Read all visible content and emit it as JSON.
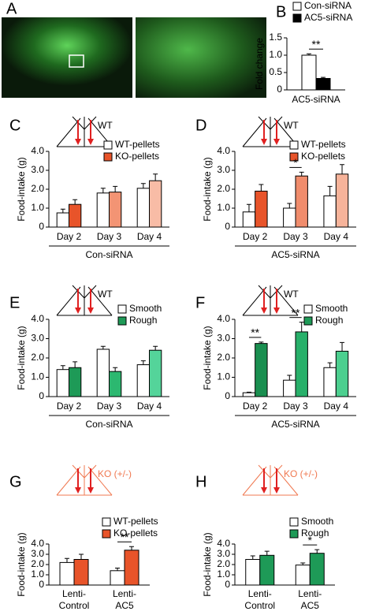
{
  "image_panel": {
    "label": "A"
  },
  "chart_data": [
    {
      "type": "bar",
      "panel": "B",
      "ylabel": "Fold change",
      "categories": [
        "AC5-siRNA"
      ],
      "ylim": [
        0,
        1.5
      ],
      "yticks": [
        0,
        0.5,
        {
          "value": 1,
          "label": "1.0"
        },
        1.5
      ],
      "series": [
        {
          "name": "Con-siRNA",
          "color": "#ffffff",
          "values": [
            1.0
          ],
          "errors": [
            0.04
          ]
        },
        {
          "name": "AC5-siRNA",
          "color": "#000000",
          "values": [
            0.33
          ],
          "errors": [
            0.03
          ]
        }
      ],
      "significance": [
        "**"
      ]
    },
    {
      "type": "bar",
      "panel": "C",
      "schematic_label": "WT",
      "schematic_color": "#000000",
      "ylabel": "Food-intake (g)",
      "xlabel": "Con-siRNA",
      "categories": [
        "Day 2",
        "Day 3",
        "Day 4"
      ],
      "ylim": [
        0,
        4
      ],
      "yticks": [
        0,
        {
          "value": 1,
          "label": "1.0"
        },
        {
          "value": 2,
          "label": "2.0"
        },
        {
          "value": 3,
          "label": "3.0"
        },
        {
          "value": 4,
          "label": "4.0"
        }
      ],
      "series": [
        {
          "name": "WT-pellets",
          "color": "#ffffff",
          "values": [
            0.75,
            1.8,
            2.05
          ],
          "errors": [
            0.2,
            0.25,
            0.25
          ]
        },
        {
          "name": "KO-pellets",
          "color": "#e8542a",
          "colors": [
            "#e8542a",
            "#f39474",
            "#f8bca6"
          ],
          "values": [
            1.2,
            1.85,
            2.45
          ],
          "errors": [
            0.25,
            0.3,
            0.35
          ]
        }
      ],
      "significance": [
        null,
        null,
        null
      ]
    },
    {
      "type": "bar",
      "panel": "D",
      "schematic_label": "WT",
      "schematic_color": "#000000",
      "ylabel": "Food-intake (g)",
      "xlabel": "AC5-siRNA",
      "categories": [
        "Day 2",
        "Day 3",
        "Day 4"
      ],
      "ylim": [
        0,
        4
      ],
      "yticks": [
        0,
        {
          "value": 1,
          "label": "1.0"
        },
        {
          "value": 2,
          "label": "2.0"
        },
        {
          "value": 3,
          "label": "3.0"
        },
        {
          "value": 4,
          "label": "4.0"
        }
      ],
      "series": [
        {
          "name": "WT-pellets",
          "color": "#ffffff",
          "values": [
            0.8,
            1.0,
            1.65
          ],
          "errors": [
            0.4,
            0.25,
            0.5
          ]
        },
        {
          "name": "KO-pellets",
          "color": "#e8542a",
          "colors": [
            "#e8542a",
            "#f08c6c",
            "#f6b39a"
          ],
          "values": [
            1.9,
            2.7,
            2.8
          ],
          "errors": [
            0.35,
            0.2,
            0.5
          ]
        }
      ],
      "significance": [
        null,
        "*",
        null
      ]
    },
    {
      "type": "bar",
      "panel": "E",
      "schematic_label": "WT",
      "schematic_color": "#000000",
      "ylabel": "Food-intake (g)",
      "xlabel": "Con-siRNA",
      "categories": [
        "Day 2",
        "Day 3",
        "Day 4"
      ],
      "ylim": [
        0,
        4
      ],
      "yticks": [
        0,
        {
          "value": 1,
          "label": "1.0"
        },
        {
          "value": 2,
          "label": "2.0"
        },
        {
          "value": 3,
          "label": "3.0"
        },
        {
          "value": 4,
          "label": "4.0"
        }
      ],
      "series": [
        {
          "name": "Smooth",
          "color": "#ffffff",
          "values": [
            1.4,
            2.45,
            1.65
          ],
          "errors": [
            0.2,
            0.15,
            0.2
          ]
        },
        {
          "name": "Rough",
          "color": "#1e9a57",
          "colors": [
            "#1e9a57",
            "#2cb870",
            "#54d49a"
          ],
          "values": [
            1.5,
            1.3,
            2.4
          ],
          "errors": [
            0.3,
            0.2,
            0.2
          ]
        }
      ],
      "significance": [
        null,
        null,
        null
      ]
    },
    {
      "type": "bar",
      "panel": "F",
      "schematic_label": "WT",
      "schematic_color": "#000000",
      "ylabel": "Food-intake (g)",
      "xlabel": "AC5-siRNA",
      "categories": [
        "Day 2",
        "Day 3",
        "Day 4"
      ],
      "ylim": [
        0,
        4
      ],
      "yticks": [
        0,
        {
          "value": 1,
          "label": "1.0"
        },
        {
          "value": 2,
          "label": "2.0"
        },
        {
          "value": 3,
          "label": "3.0"
        },
        {
          "value": 4,
          "label": "4.0"
        }
      ],
      "series": [
        {
          "name": "Smooth",
          "color": "#ffffff",
          "values": [
            0.2,
            0.85,
            1.5
          ],
          "errors": [
            0.03,
            0.25,
            0.25
          ]
        },
        {
          "name": "Rough",
          "color": "#1e9a57",
          "colors": [
            "#1a8f50",
            "#28b06a",
            "#4ccf8f"
          ],
          "values": [
            2.75,
            3.35,
            2.35
          ],
          "errors": [
            0.07,
            0.5,
            0.45
          ]
        }
      ],
      "significance": [
        "**",
        "**",
        null
      ]
    },
    {
      "type": "bar",
      "panel": "G",
      "schematic_label": "KO (+/-)",
      "schematic_color": "#f07850",
      "ylabel": "Food-intake (g)",
      "categories": [
        [
          "Lenti-",
          "Control"
        ],
        [
          "Lenti-",
          "AC5"
        ]
      ],
      "ylim": [
        0,
        4
      ],
      "yticks": [
        0,
        {
          "value": 1,
          "label": "1.0"
        },
        {
          "value": 2,
          "label": "2.0"
        },
        {
          "value": 3,
          "label": "3.0"
        },
        {
          "value": 4,
          "label": "4.0"
        }
      ],
      "series": [
        {
          "name": "WT-pellets",
          "color": "#ffffff",
          "values": [
            2.2,
            1.4
          ],
          "errors": [
            0.4,
            0.25
          ]
        },
        {
          "name": "KO-pellets",
          "color": "#e8542a",
          "values": [
            2.5,
            3.4
          ],
          "errors": [
            0.5,
            0.35
          ]
        }
      ],
      "significance": [
        null,
        "**"
      ]
    },
    {
      "type": "bar",
      "panel": "H",
      "schematic_label": "KO (+/-)",
      "schematic_color": "#f07850",
      "ylabel": "Food-intake (g)",
      "categories": [
        [
          "Lenti-",
          "Control"
        ],
        [
          "Lenti-",
          "AC5"
        ]
      ],
      "ylim": [
        0,
        4
      ],
      "yticks": [
        0,
        {
          "value": 1,
          "label": "1.0"
        },
        {
          "value": 2,
          "label": "2.0"
        },
        {
          "value": 3,
          "label": "3.0"
        },
        {
          "value": 4,
          "label": "4.0"
        }
      ],
      "series": [
        {
          "name": "Smooth",
          "color": "#ffffff",
          "values": [
            2.5,
            1.95
          ],
          "errors": [
            0.35,
            0.2
          ]
        },
        {
          "name": "Rough",
          "color": "#1e9a57",
          "values": [
            2.9,
            3.1
          ],
          "errors": [
            0.4,
            0.35
          ]
        }
      ],
      "significance": [
        null,
        "*"
      ]
    }
  ]
}
